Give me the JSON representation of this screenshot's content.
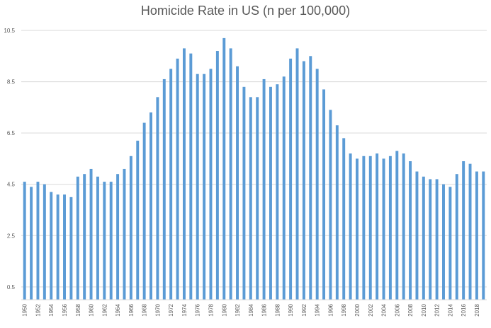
{
  "chart_data": {
    "type": "bar",
    "title": "Homicide Rate in US (n per 100,000)",
    "xlabel": "",
    "ylabel": "",
    "ylim": [
      0,
      10.5
    ],
    "yticks": [
      "0.5",
      "2.5",
      "4.5",
      "6.5",
      "8.5",
      "10.5"
    ],
    "grid": true,
    "color": "#5B9BD5",
    "categories": [
      "1950",
      "1951",
      "1952",
      "1953",
      "1954",
      "1955",
      "1956",
      "1957",
      "1958",
      "1959",
      "1960",
      "1961",
      "1962",
      "1963",
      "1964",
      "1965",
      "1966",
      "1967",
      "1968",
      "1969",
      "1970",
      "1971",
      "1972",
      "1973",
      "1974",
      "1975",
      "1976",
      "1977",
      "1978",
      "1979",
      "1980",
      "1981",
      "1982",
      "1983",
      "1984",
      "1985",
      "1986",
      "1987",
      "1988",
      "1989",
      "1990",
      "1991",
      "1992",
      "1993",
      "1994",
      "1995",
      "1996",
      "1997",
      "1998",
      "1999",
      "2000",
      "2001",
      "2002",
      "2003",
      "2004",
      "2005",
      "2006",
      "2007",
      "2008",
      "2009",
      "2010",
      "2011",
      "2012",
      "2013",
      "2014",
      "2015",
      "2016",
      "2017",
      "2018",
      "2019"
    ],
    "xtick_labels": [
      "1950",
      "1952",
      "1954",
      "1956",
      "1958",
      "1960",
      "1962",
      "1964",
      "1966",
      "1968",
      "1970",
      "1972",
      "1974",
      "1976",
      "1978",
      "1980",
      "1982",
      "1984",
      "1986",
      "1988",
      "1990",
      "1992",
      "1994",
      "1996",
      "1998",
      "2000",
      "2002",
      "2004",
      "2006",
      "2008",
      "2010",
      "2012",
      "2014",
      "2016",
      "2018"
    ],
    "values": [
      4.6,
      4.4,
      4.6,
      4.5,
      4.2,
      4.1,
      4.1,
      4.0,
      4.8,
      4.9,
      5.1,
      4.8,
      4.6,
      4.6,
      4.9,
      5.1,
      5.6,
      6.2,
      6.9,
      7.3,
      7.9,
      8.6,
      9.0,
      9.4,
      9.8,
      9.6,
      8.8,
      8.8,
      9.0,
      9.7,
      10.2,
      9.8,
      9.1,
      8.3,
      7.9,
      7.9,
      8.6,
      8.3,
      8.4,
      8.7,
      9.4,
      9.8,
      9.3,
      9.5,
      9.0,
      8.2,
      7.4,
      6.8,
      6.3,
      5.7,
      5.5,
      5.6,
      5.6,
      5.7,
      5.5,
      5.6,
      5.8,
      5.7,
      5.4,
      5.0,
      4.8,
      4.7,
      4.7,
      4.5,
      4.4,
      4.9,
      5.4,
      5.3,
      5.0,
      5.0
    ]
  }
}
